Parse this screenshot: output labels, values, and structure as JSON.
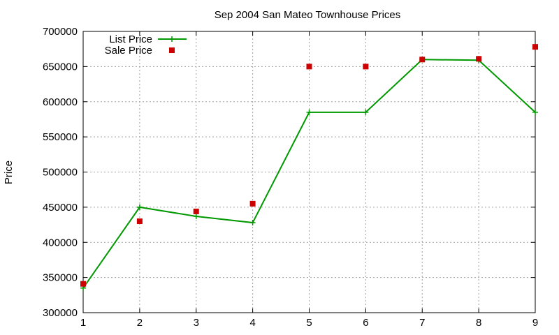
{
  "chart_data": {
    "type": "line",
    "title": "Sep 2004 San Mateo Townhouse Prices",
    "xlabel": "",
    "ylabel": "Price",
    "xlim": [
      1,
      9
    ],
    "ylim": [
      300000,
      700000
    ],
    "xticks": [
      1,
      2,
      3,
      4,
      5,
      6,
      7,
      8,
      9
    ],
    "yticks": [
      300000,
      350000,
      400000,
      450000,
      500000,
      550000,
      600000,
      650000,
      700000
    ],
    "grid": true,
    "legend_position": "top-left",
    "series": [
      {
        "name": "List Price",
        "style": "line-plus",
        "color": "#009900",
        "x": [
          1,
          2,
          3,
          4,
          5,
          6,
          7,
          8,
          9
        ],
        "y": [
          335000,
          450000,
          437000,
          428000,
          585000,
          585000,
          660000,
          659000,
          585000
        ]
      },
      {
        "name": "Sale Price",
        "style": "square-marker",
        "color": "#cc0000",
        "x": [
          1,
          2,
          3,
          4,
          5,
          6,
          7,
          8,
          9
        ],
        "y": [
          341000,
          430000,
          444000,
          455000,
          650000,
          650000,
          660000,
          661000,
          678000
        ]
      }
    ]
  }
}
